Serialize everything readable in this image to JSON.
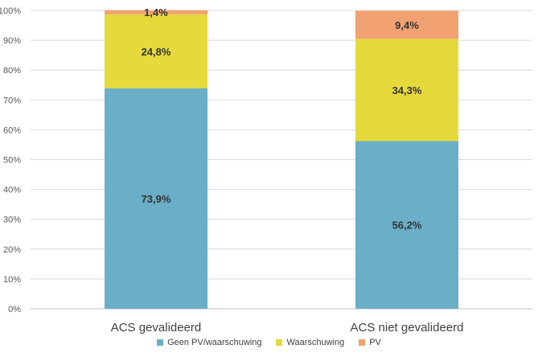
{
  "chart_data": {
    "type": "bar",
    "stacked": true,
    "percent_stacked": true,
    "categories": [
      "ACS gevalideerd",
      "ACS niet gevalideerd"
    ],
    "series": [
      {
        "name": "Geen PV/waarschuwing",
        "values": [
          73.9,
          56.2
        ],
        "labels": [
          "73,9%",
          "56,2%"
        ],
        "color": "#6aaec8"
      },
      {
        "name": "Waarschuwing",
        "values": [
          24.8,
          34.3
        ],
        "labels": [
          "24,8%",
          "34,3%"
        ],
        "color": "#e6d93c"
      },
      {
        "name": "PV",
        "values": [
          1.4,
          9.4
        ],
        "labels": [
          "1,4%",
          "9,4%"
        ],
        "color": "#f2a272"
      }
    ],
    "ylim": [
      0,
      100
    ],
    "yticks": [
      "0%",
      "10%",
      "20%",
      "30%",
      "40%",
      "50%",
      "60%",
      "70%",
      "80%",
      "90%",
      "100%"
    ],
    "grid": true,
    "legend_position": "bottom",
    "title": "",
    "xlabel": "",
    "ylabel": ""
  }
}
